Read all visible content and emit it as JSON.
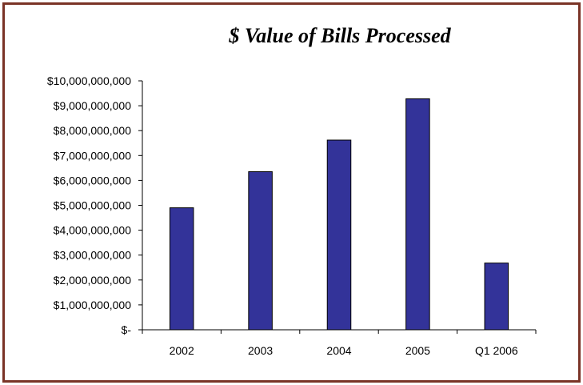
{
  "chart_data": {
    "type": "bar",
    "title": "$ Value of Bills Processed",
    "categories": [
      "2002",
      "2003",
      "2004",
      "2005",
      "Q1 2006"
    ],
    "values": [
      4900000000,
      6350000000,
      7620000000,
      9280000000,
      2680000000
    ],
    "ylim": [
      0,
      10000000000
    ],
    "y_ticks": [
      0,
      1000000000,
      2000000000,
      3000000000,
      4000000000,
      5000000000,
      6000000000,
      7000000000,
      8000000000,
      9000000000,
      10000000000
    ],
    "y_tick_labels": [
      "$-",
      "$1,000,000,000",
      "$2,000,000,000",
      "$3,000,000,000",
      "$4,000,000,000",
      "$5,000,000,000",
      "$6,000,000,000",
      "$7,000,000,000",
      "$8,000,000,000",
      "$9,000,000,000",
      "$10,000,000,000"
    ],
    "xlabel": "",
    "ylabel": "",
    "grid": false,
    "bar_color": "#333399",
    "bar_edge_color": "#000000",
    "frame_color": "#7a3326"
  }
}
